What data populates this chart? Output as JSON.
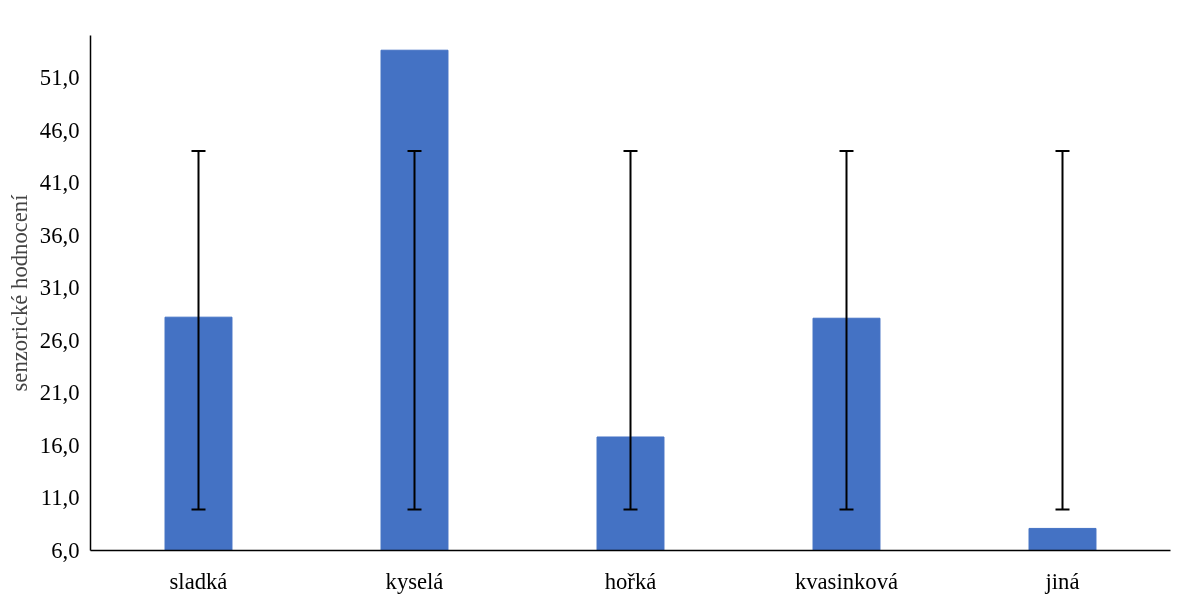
{
  "chart_data": {
    "type": "bar",
    "ylabel": "senzorické hodnocení",
    "categories": [
      "sladká",
      "kyselá",
      "hořká",
      "kvasinková",
      "jiná"
    ],
    "values": [
      28.2,
      53.6,
      16.8,
      28.1,
      8.1
    ],
    "color": "#4472c4",
    "errors": [
      [
        9.9,
        44.0
      ],
      [
        9.9,
        44.0
      ],
      [
        9.9,
        44.0
      ],
      [
        9.9,
        44.0
      ],
      [
        9.9,
        44.0
      ]
    ],
    "ylim": [
      6,
      55
    ],
    "yticks": [
      {
        "value": 6,
        "label": "6,0"
      },
      {
        "value": 11,
        "label": "11,0"
      },
      {
        "value": 16,
        "label": "16,0"
      },
      {
        "value": 21,
        "label": "21,0"
      },
      {
        "value": 26,
        "label": "26,0"
      },
      {
        "value": 31,
        "label": "31,0"
      },
      {
        "value": 36,
        "label": "36,0"
      },
      {
        "value": 41,
        "label": "41,0"
      },
      {
        "value": 46,
        "label": "46,0"
      },
      {
        "value": 51,
        "label": "51,0"
      }
    ],
    "grid": false
  }
}
